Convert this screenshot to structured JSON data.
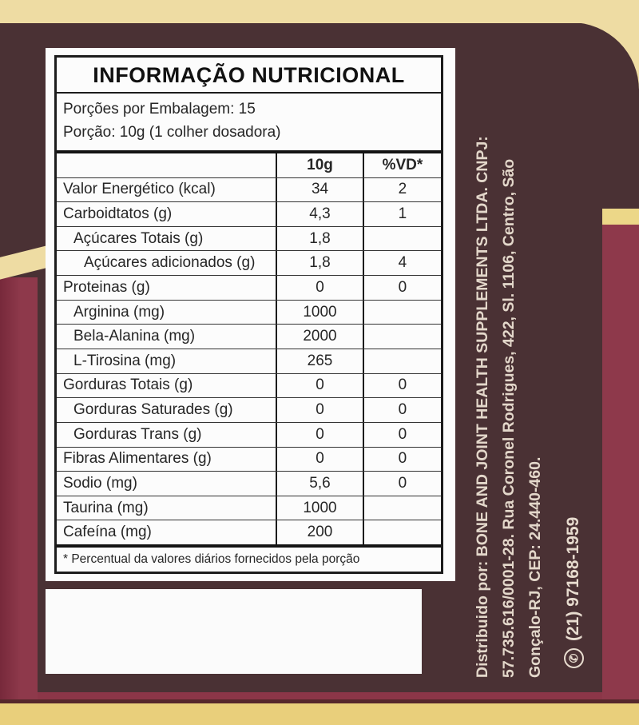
{
  "label": {
    "title": "INFORMAÇÃO NUTRICIONAL",
    "servings_per_package": "Porções por Embalagem: 15",
    "serving_size": "Porção: 10g (1 colher dosadora)",
    "columns": [
      "",
      "10g",
      "%VD*"
    ],
    "rows": [
      {
        "name": "Valor Energético (kcal)",
        "qty": "34",
        "vd": "2",
        "indent": 0
      },
      {
        "name": "Carboidtatos (g)",
        "qty": "4,3",
        "vd": "1",
        "indent": 0
      },
      {
        "name": "Açúcares Totais (g)",
        "qty": "1,8",
        "vd": "",
        "indent": 1
      },
      {
        "name": "Açúcares adicionados (g)",
        "qty": "1,8",
        "vd": "4",
        "indent": 2
      },
      {
        "name": "Proteinas (g)",
        "qty": "0",
        "vd": "0",
        "indent": 0
      },
      {
        "name": "Arginina (mg)",
        "qty": "1000",
        "vd": "",
        "indent": 1
      },
      {
        "name": "Bela-Alanina (mg)",
        "qty": "2000",
        "vd": "",
        "indent": 1
      },
      {
        "name": "L-Tirosina (mg)",
        "qty": "265",
        "vd": "",
        "indent": 1
      },
      {
        "name": "Gorduras Totais (g)",
        "qty": "0",
        "vd": "0",
        "indent": 0
      },
      {
        "name": "Gorduras Saturades (g)",
        "qty": "0",
        "vd": "0",
        "indent": 1
      },
      {
        "name": "Gorduras Trans (g)",
        "qty": "0",
        "vd": "0",
        "indent": 1
      },
      {
        "name": "Fibras Alimentares (g)",
        "qty": "0",
        "vd": "0",
        "indent": 0
      },
      {
        "name": "Sodio (mg)",
        "qty": "5,6",
        "vd": "0",
        "indent": 0
      },
      {
        "name": "Taurina (mg)",
        "qty": "1000",
        "vd": "",
        "indent": 0
      },
      {
        "name": "Cafeína (mg)",
        "qty": "200",
        "vd": "",
        "indent": 0
      }
    ],
    "footnote": "* Percentual da valores diários fornecidos pela porção"
  },
  "distributor": {
    "line1": "Distribuido por: BONE AND JOINT HEALTH SUPPLEMENTS LTDA.  CNPJ:",
    "line2": "57.735.616/0001-28. Rua Coronel Rodrigues, 422, Sl. 1106, Centro, São",
    "line3": "Gonçalo-RJ, CEP: 24.440-460.",
    "phone": "(21) 97168-1959",
    "phone_icon": "whatsapp-icon"
  },
  "palette": {
    "panel_brown": "#4a3134",
    "stripe_maroon": "#8b3648",
    "cream_band": "#eedca3",
    "gold_band": "#e9cf7b",
    "plate_white": "#fcfcfc",
    "vertical_text": "#e3d7ca",
    "table_ink": "#1c1c1c"
  }
}
